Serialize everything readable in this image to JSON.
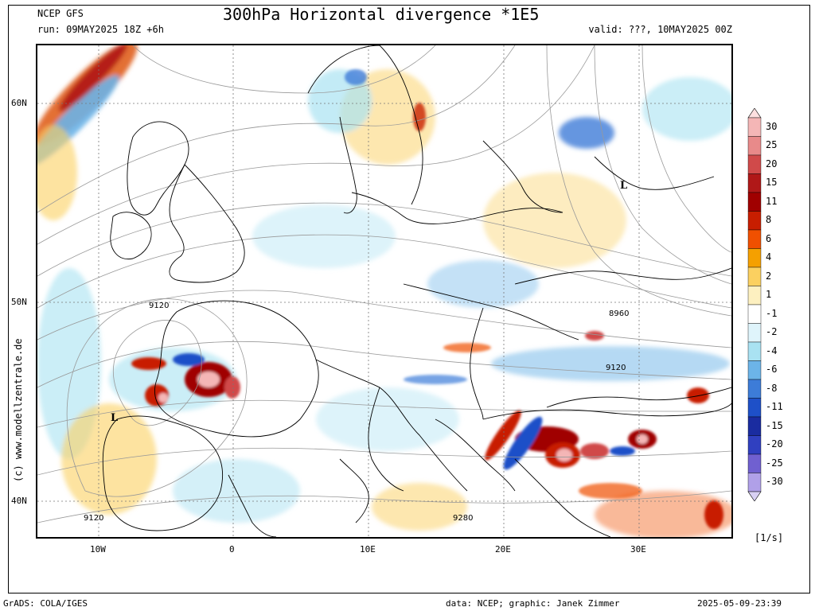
{
  "header": {
    "model": "NCEP GFS",
    "run": "run: 09MAY2025 18Z +6h",
    "title": "300hPa Horizontal divergence *1E5",
    "valid": "valid: ???, 10MAY2025 00Z"
  },
  "axes": {
    "lat_labels": [
      "60N",
      "50N",
      "40N"
    ],
    "lon_labels": [
      "10W",
      "0",
      "10E",
      "20E",
      "30E"
    ]
  },
  "contour_labels": [
    "9120",
    "8960",
    "9120",
    "9120",
    "9280"
  ],
  "pressure_labels": [
    "L",
    "L"
  ],
  "colorbar": {
    "labels": [
      "30",
      "25",
      "20",
      "15",
      "11",
      "8",
      "6",
      "4",
      "2",
      "1",
      "-1",
      "-2",
      "-4",
      "-6",
      "-8",
      "-11",
      "-15",
      "-20",
      "-25",
      "-30"
    ],
    "colors": [
      "#f4b6b6",
      "#e88a8a",
      "#d04a4a",
      "#b01818",
      "#a00000",
      "#c81e00",
      "#f05000",
      "#f5a000",
      "#fbd060",
      "#fdf0c0",
      "#ffffff",
      "#dff4fb",
      "#a9e2f2",
      "#6cb4e8",
      "#3d7cd8",
      "#1e50c8",
      "#1a2ca0",
      "#3040c0",
      "#7060d0",
      "#b0a0e8"
    ],
    "units": "[1/s]"
  },
  "copyright": "(c) www.modellzentrale.de",
  "footer": {
    "left": "GrADS: COLA/IGES",
    "center": "data: NCEP; graphic: Janek Zimmer",
    "right": "2025-05-09-23:39"
  }
}
